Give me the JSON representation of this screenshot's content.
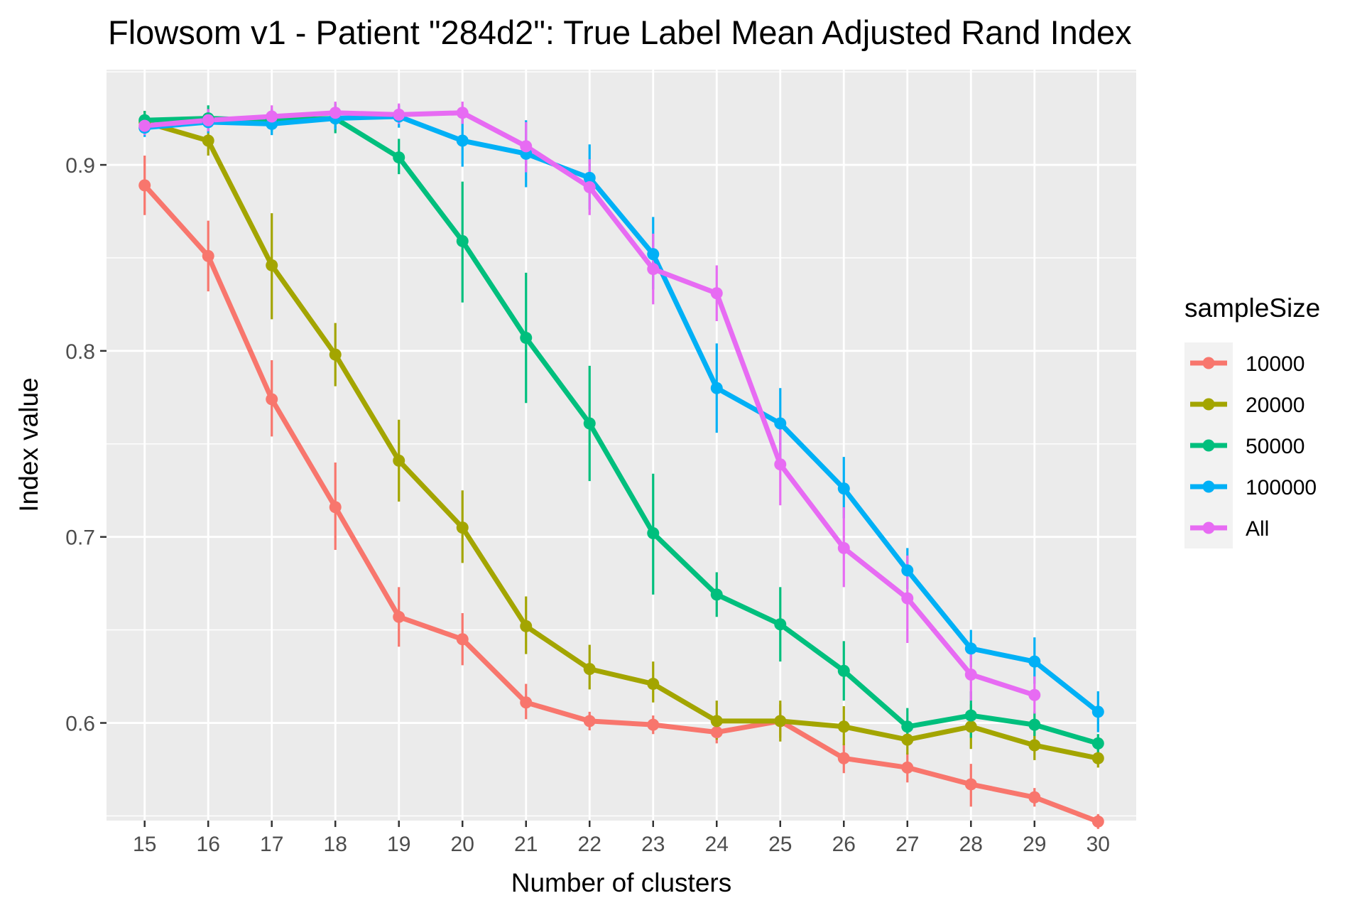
{
  "chart_data": {
    "type": "line",
    "title": "Flowsom v1 - Patient \"284d2\": True Label Mean Adjusted Rand Index",
    "xlabel": "Number of clusters",
    "ylabel": "Index value",
    "x": [
      15,
      16,
      17,
      18,
      19,
      20,
      21,
      22,
      23,
      24,
      25,
      26,
      27,
      28,
      29,
      30
    ],
    "x_ticks": [
      "15",
      "16",
      "17",
      "18",
      "19",
      "20",
      "21",
      "22",
      "23",
      "24",
      "25",
      "26",
      "27",
      "28",
      "29",
      "30"
    ],
    "y_ticks": [
      {
        "value": 0.6,
        "label": "0.6"
      },
      {
        "value": 0.7,
        "label": "0.7"
      },
      {
        "value": 0.8,
        "label": "0.8"
      },
      {
        "value": 0.9,
        "label": "0.9"
      }
    ],
    "ylim": [
      0.5475,
      0.9512
    ],
    "grid": true,
    "legend_title": "sampleSize",
    "legend_position": "right",
    "series": [
      {
        "name": "10000",
        "color": "#F8766D",
        "values": [
          0.889,
          0.851,
          0.774,
          0.716,
          0.657,
          0.645,
          0.611,
          0.601,
          0.599,
          0.595,
          0.601,
          0.581,
          0.576,
          0.567,
          0.56,
          0.547
        ],
        "error_low": [
          0.873,
          0.832,
          0.754,
          0.693,
          0.641,
          0.631,
          0.602,
          0.596,
          0.594,
          0.589,
          0.592,
          0.573,
          0.568,
          0.555,
          0.555,
          0.543
        ],
        "error_high": [
          0.905,
          0.87,
          0.795,
          0.74,
          0.673,
          0.659,
          0.621,
          0.606,
          0.604,
          0.601,
          0.61,
          0.589,
          0.584,
          0.578,
          0.565,
          0.551
        ]
      },
      {
        "name": "20000",
        "color": "#A3A500",
        "values": [
          0.923,
          0.913,
          0.846,
          0.798,
          0.741,
          0.705,
          0.652,
          0.629,
          0.621,
          0.601,
          0.601,
          0.598,
          0.591,
          0.598,
          0.588,
          0.581
        ],
        "error_low": [
          0.917,
          0.905,
          0.817,
          0.781,
          0.719,
          0.686,
          0.637,
          0.618,
          0.611,
          0.591,
          0.59,
          0.588,
          0.583,
          0.586,
          0.58,
          0.576
        ],
        "error_high": [
          0.929,
          0.921,
          0.874,
          0.815,
          0.763,
          0.725,
          0.668,
          0.642,
          0.633,
          0.612,
          0.612,
          0.609,
          0.599,
          0.61,
          0.597,
          0.586
        ]
      },
      {
        "name": "50000",
        "color": "#00BF7D",
        "values": [
          0.924,
          0.925,
          0.924,
          0.925,
          0.904,
          0.859,
          0.807,
          0.761,
          0.702,
          0.669,
          0.653,
          0.628,
          0.598,
          0.604,
          0.599,
          0.589
        ],
        "error_low": [
          0.918,
          0.918,
          0.918,
          0.917,
          0.895,
          0.826,
          0.772,
          0.73,
          0.669,
          0.657,
          0.633,
          0.612,
          0.589,
          0.592,
          0.593,
          0.584
        ],
        "error_high": [
          0.929,
          0.932,
          0.93,
          0.933,
          0.914,
          0.891,
          0.842,
          0.792,
          0.734,
          0.681,
          0.673,
          0.644,
          0.608,
          0.617,
          0.606,
          0.594
        ]
      },
      {
        "name": "100000",
        "color": "#00B0F6",
        "values": [
          0.92,
          0.923,
          0.922,
          0.925,
          0.926,
          0.913,
          0.906,
          0.893,
          0.852,
          0.78,
          0.761,
          0.726,
          0.682,
          0.64,
          0.633,
          0.606
        ],
        "error_low": [
          0.915,
          0.917,
          0.916,
          0.919,
          0.92,
          0.899,
          0.888,
          0.876,
          0.833,
          0.756,
          0.742,
          0.71,
          0.672,
          0.63,
          0.621,
          0.595
        ],
        "error_high": [
          0.925,
          0.929,
          0.928,
          0.931,
          0.932,
          0.926,
          0.924,
          0.911,
          0.872,
          0.804,
          0.78,
          0.743,
          0.694,
          0.65,
          0.646,
          0.617
        ]
      },
      {
        "name": "All",
        "color": "#E76BF3",
        "values": [
          0.921,
          0.924,
          0.926,
          0.928,
          0.927,
          0.928,
          0.91,
          0.888,
          0.844,
          0.831,
          0.739,
          0.694,
          0.667,
          0.626,
          0.615,
          null
        ],
        "error_low": [
          0.916,
          0.918,
          0.92,
          0.922,
          0.922,
          0.922,
          0.896,
          0.873,
          0.825,
          0.816,
          0.717,
          0.673,
          0.643,
          0.612,
          0.605,
          null
        ],
        "error_high": [
          0.926,
          0.93,
          0.932,
          0.934,
          0.933,
          0.934,
          0.923,
          0.903,
          0.863,
          0.846,
          0.76,
          0.716,
          0.69,
          0.639,
          0.625,
          null
        ]
      }
    ]
  }
}
